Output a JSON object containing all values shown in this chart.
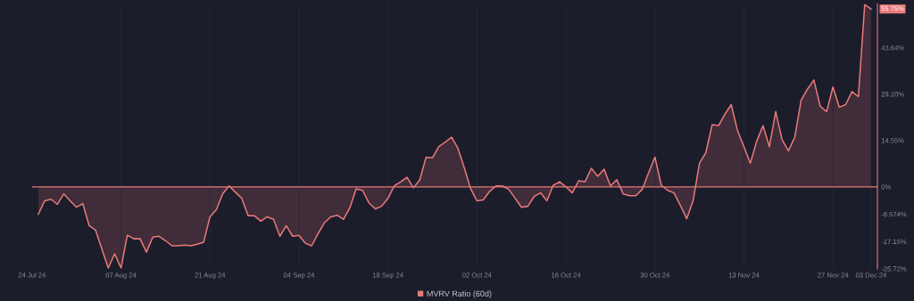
{
  "chart_data": {
    "type": "area",
    "x": [
      "2024-07-25",
      "2024-07-26",
      "2024-07-27",
      "2024-07-28",
      "2024-07-29",
      "2024-07-30",
      "2024-07-31",
      "2024-08-01",
      "2024-08-02",
      "2024-08-03",
      "2024-08-05",
      "2024-08-06",
      "2024-08-07",
      "2024-08-08",
      "2024-08-09",
      "2024-08-10",
      "2024-08-11",
      "2024-08-12",
      "2024-08-13",
      "2024-08-14",
      "2024-08-15",
      "2024-08-16",
      "2024-08-17",
      "2024-08-18",
      "2024-08-19",
      "2024-08-20",
      "2024-08-21",
      "2024-08-22",
      "2024-08-23",
      "2024-08-24",
      "2024-08-25",
      "2024-08-26",
      "2024-08-27",
      "2024-08-28",
      "2024-08-29",
      "2024-08-30",
      "2024-08-31",
      "2024-09-01",
      "2024-09-02",
      "2024-09-03",
      "2024-09-04",
      "2024-09-05",
      "2024-09-06",
      "2024-09-07",
      "2024-09-08",
      "2024-09-09",
      "2024-09-10",
      "2024-09-11",
      "2024-09-12",
      "2024-09-13",
      "2024-09-14",
      "2024-09-15",
      "2024-09-16",
      "2024-09-17",
      "2024-09-18",
      "2024-09-19",
      "2024-09-20",
      "2024-09-21",
      "2024-09-22",
      "2024-09-23",
      "2024-09-24",
      "2024-09-25",
      "2024-09-26",
      "2024-09-27",
      "2024-09-28",
      "2024-09-29",
      "2024-09-30",
      "2024-10-01",
      "2024-10-02",
      "2024-10-03",
      "2024-10-04",
      "2024-10-05",
      "2024-10-06",
      "2024-10-07",
      "2024-10-08",
      "2024-10-09",
      "2024-10-10",
      "2024-10-11",
      "2024-10-12",
      "2024-10-13",
      "2024-10-14",
      "2024-10-15",
      "2024-10-16",
      "2024-10-17",
      "2024-10-18",
      "2024-10-19",
      "2024-10-20",
      "2024-10-21",
      "2024-10-22",
      "2024-10-23",
      "2024-10-24",
      "2024-10-25",
      "2024-10-26",
      "2024-10-27",
      "2024-10-28",
      "2024-10-29",
      "2024-10-30",
      "2024-10-31",
      "2024-11-01",
      "2024-11-02",
      "2024-11-03",
      "2024-11-04",
      "2024-11-05",
      "2024-11-06",
      "2024-11-07",
      "2024-11-08",
      "2024-11-09",
      "2024-11-10",
      "2024-11-11",
      "2024-11-12",
      "2024-11-13",
      "2024-11-14",
      "2024-11-15",
      "2024-11-16",
      "2024-11-17",
      "2024-11-18",
      "2024-11-19",
      "2024-11-20",
      "2024-11-21",
      "2024-11-22",
      "2024-11-23",
      "2024-11-24",
      "2024-11-25",
      "2024-11-26",
      "2024-11-27",
      "2024-11-28",
      "2024-11-29",
      "2024-11-30",
      "2024-12-01",
      "2024-12-02",
      "2024-12-03"
    ],
    "series": [
      {
        "name": "MVRV Ratio (60d)",
        "color": "#e8797a",
        "values": [
          -8.6,
          -4.4,
          -3.9,
          -5.5,
          -2.2,
          -4.4,
          -6.4,
          -5.3,
          -12.2,
          -13.6,
          -25.5,
          -21.0,
          -25.5,
          -15.2,
          -16.3,
          -16.3,
          -20.5,
          -15.8,
          -15.5,
          -16.9,
          -18.5,
          -18.5,
          -18.3,
          -18.5,
          -18.0,
          -17.4,
          -9.4,
          -7.2,
          -2.2,
          0.3,
          -1.7,
          -3.6,
          -9.1,
          -9.1,
          -10.8,
          -9.4,
          -10.2,
          -15.5,
          -12.2,
          -15.5,
          -15.2,
          -17.7,
          -18.5,
          -14.7,
          -11.3,
          -9.4,
          -8.9,
          -10.2,
          -6.6,
          -0.6,
          -1.1,
          -5.0,
          -6.9,
          -6.1,
          -3.6,
          0.3,
          1.6,
          3.0,
          -0.3,
          2.2,
          9.3,
          9.1,
          12.6,
          14.0,
          15.6,
          12.1,
          6.0,
          -0.6,
          -4.4,
          -4.1,
          -1.4,
          0.3,
          0.3,
          -0.8,
          -3.6,
          -6.4,
          -6.1,
          -3.0,
          -1.9,
          -4.4,
          0.5,
          1.6,
          0,
          -1.9,
          1.9,
          1.6,
          5.8,
          3.3,
          5.5,
          0.3,
          2.2,
          -2.2,
          -2.8,
          -2.8,
          -0.8,
          4.4,
          9.3,
          0.5,
          -1.1,
          -1.9,
          -5.8,
          -10.0,
          -4.4,
          7.4,
          10.7,
          19.5,
          19.2,
          22.8,
          25.8,
          17.6,
          12.6,
          7.4,
          14.3,
          19.2,
          12.6,
          23.6,
          14.8,
          11.3,
          15.6,
          27.2,
          30.7,
          33.5,
          25.3,
          23.6,
          31.3,
          25.0,
          25.8,
          29.9,
          28.3,
          57.2,
          55.8
        ]
      }
    ],
    "xlim": [
      "2024-07-24",
      "2024-12-04"
    ],
    "xticks": [
      {
        "value": "2024-07-24",
        "label": "24 Jul 24"
      },
      {
        "value": "2024-08-07",
        "label": "07 Aug 24"
      },
      {
        "value": "2024-08-21",
        "label": "21 Aug 24"
      },
      {
        "value": "2024-09-04",
        "label": "04 Sep 24"
      },
      {
        "value": "2024-09-18",
        "label": "18 Sep 24"
      },
      {
        "value": "2024-10-02",
        "label": "02 Oct 24"
      },
      {
        "value": "2024-10-16",
        "label": "16 Oct 24"
      },
      {
        "value": "2024-10-30",
        "label": "30 Oct 24"
      },
      {
        "value": "2024-11-13",
        "label": "13 Nov 24"
      },
      {
        "value": "2024-11-27",
        "label": "27 Nov 24"
      },
      {
        "value": "2024-12-03",
        "label": "03 Dec 24"
      }
    ],
    "ylim": [
      -25.72,
      57.4
    ],
    "yticks": [
      {
        "value": -25.72,
        "label": "-25.72%"
      },
      {
        "value": -17.15,
        "label": "-17.15%"
      },
      {
        "value": -8.574,
        "label": "-8.574%"
      },
      {
        "value": 0,
        "label": "0%"
      },
      {
        "value": 14.55,
        "label": "14.55%"
      },
      {
        "value": 29.1,
        "label": "29.10%"
      },
      {
        "value": 43.64,
        "label": "43.64%"
      }
    ],
    "ref_lines": [
      {
        "axis": "y",
        "value": 0,
        "color": "#e8797a"
      }
    ],
    "annotations": [
      {
        "text": "55.75%",
        "x": "2024-12-03",
        "y": 55.8
      }
    ],
    "grid": "x",
    "legend": "bottom"
  }
}
